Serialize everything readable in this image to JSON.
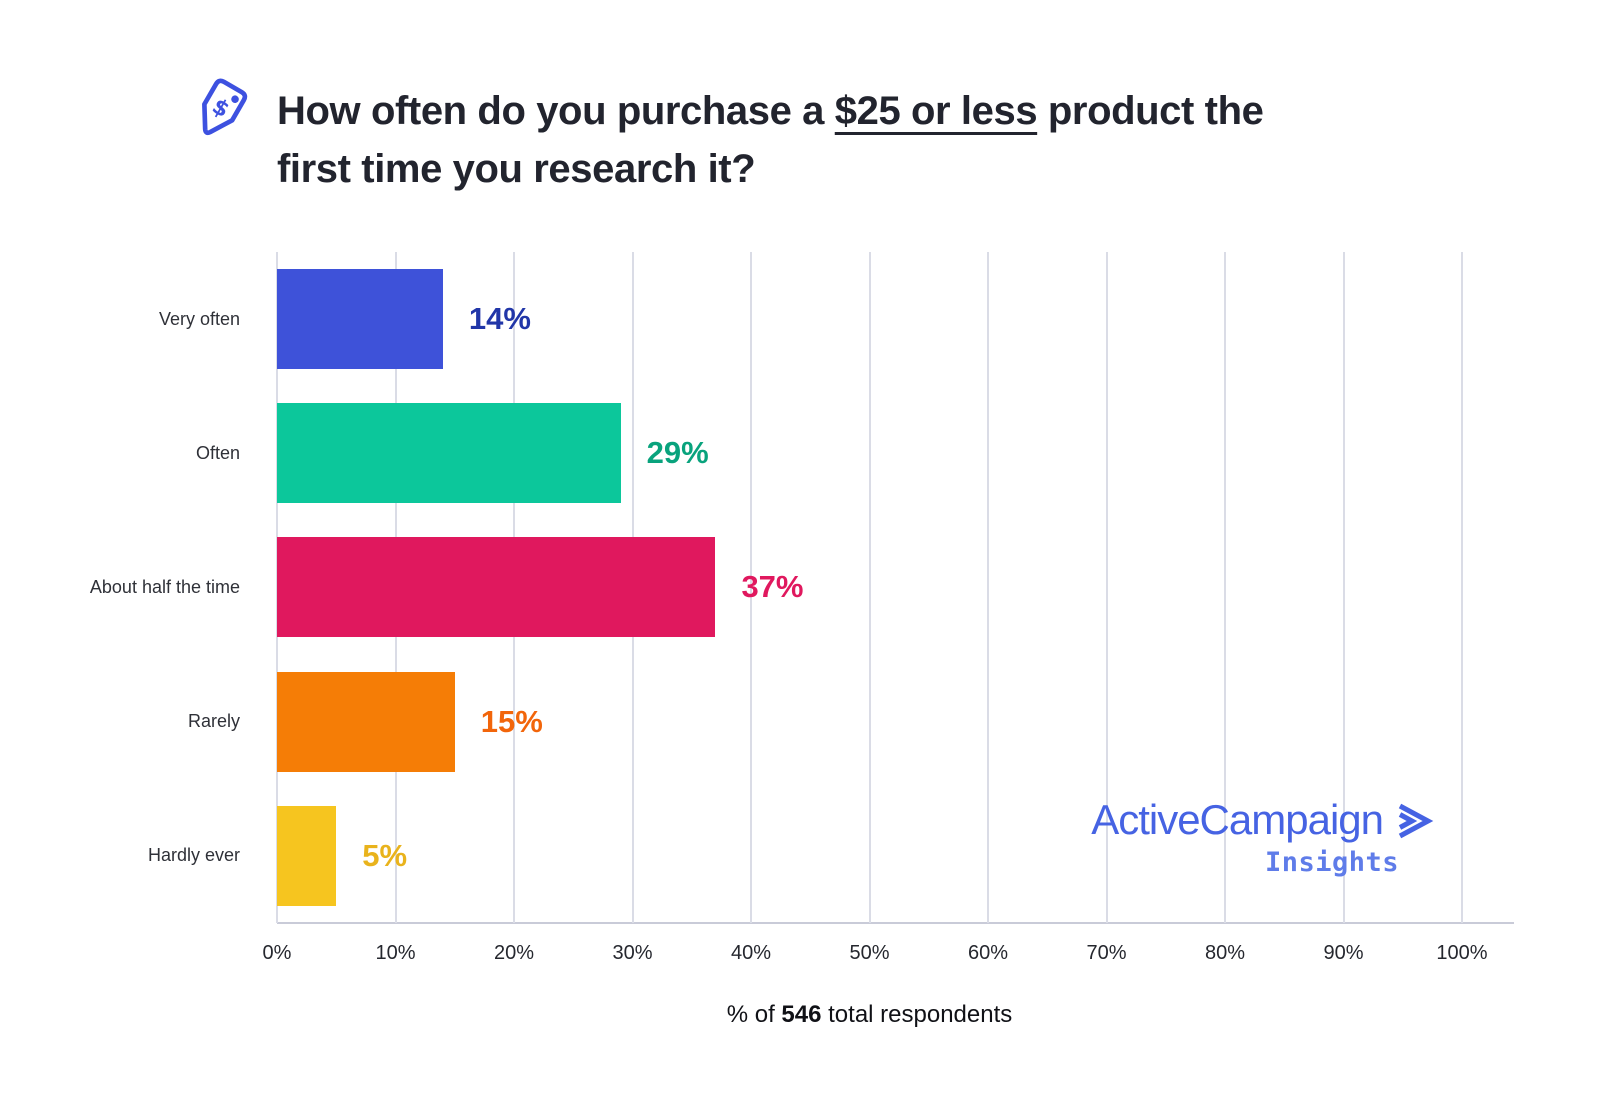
{
  "title": {
    "line1_pre": "How often do you purchase a ",
    "line1_underline": "$25 or less",
    "line1_post": " product the",
    "line2": "first time you research it?",
    "icon": "price-tag-dollar-icon",
    "icon_color": "#3d51e0"
  },
  "chart_data": {
    "type": "bar",
    "orientation": "horizontal",
    "title": "How often do you purchase a $25 or less product the first time you research it?",
    "categories": [
      "Very often",
      "Often",
      "About half the time",
      "Rarely",
      "Hardly ever"
    ],
    "values": [
      14,
      29,
      37,
      15,
      5
    ],
    "value_labels": [
      "14%",
      "29%",
      "37%",
      "15%",
      "5%"
    ],
    "bar_colors": [
      "#3e52d9",
      "#0cc79b",
      "#e0185e",
      "#f57d06",
      "#f6c51f"
    ],
    "value_label_colors": [
      "#2136a8",
      "#09a37d",
      "#e0185e",
      "#f2650a",
      "#e9b31c"
    ],
    "xlim": [
      0,
      100
    ],
    "x_ticks": [
      "0%",
      "10%",
      "20%",
      "30%",
      "40%",
      "50%",
      "60%",
      "70%",
      "80%",
      "90%",
      "100%"
    ],
    "grid": true,
    "gridline_color": "#dadce6",
    "legend": "none",
    "caption_prefix": "% of ",
    "caption_bold": "546",
    "caption_suffix": " total respondents"
  },
  "branding": {
    "name": "ActiveCampaign",
    "sub": "Insights",
    "color": "#4663e3",
    "chevron_icon": "activecampaign-chevron-icon"
  }
}
